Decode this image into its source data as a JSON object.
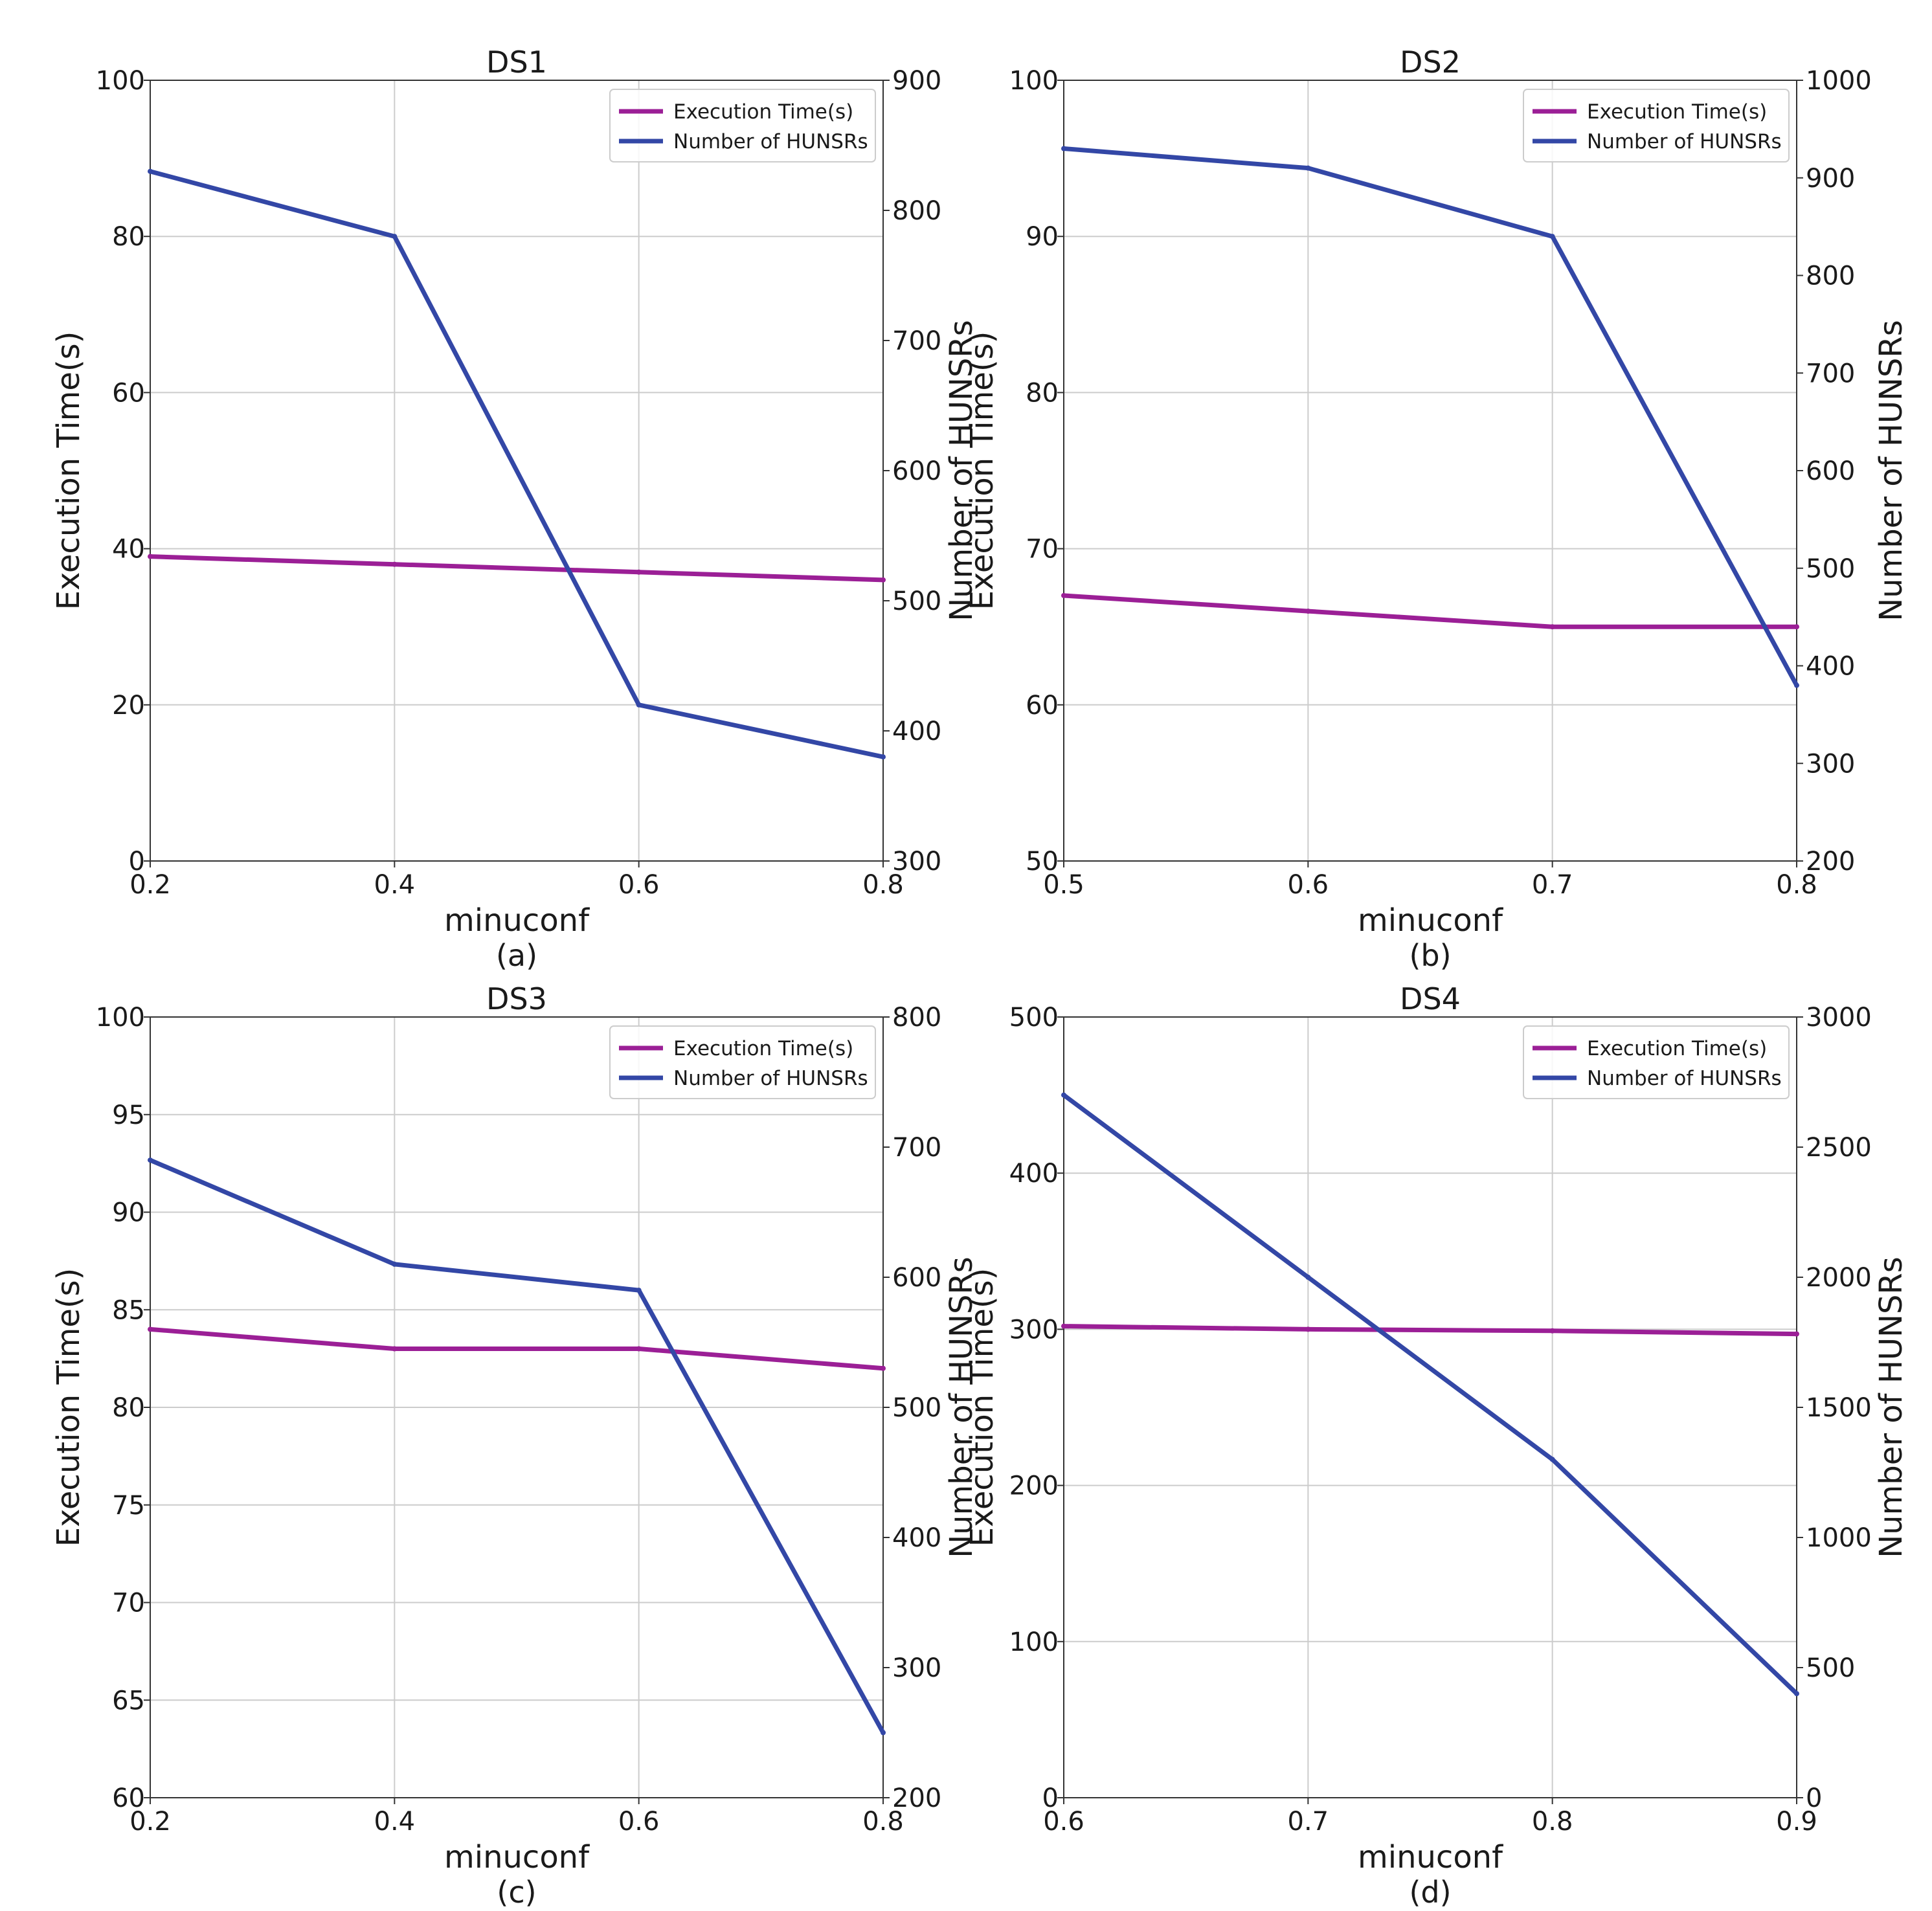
{
  "colors": {
    "execution_time": "#9b1f96",
    "hunsrs": "#3347a6"
  },
  "chart_data": [
    {
      "type": "line",
      "title": "DS1",
      "caption": "(a)",
      "xlabel": "minuconf",
      "ylabel_left": "Execution Time(s)",
      "ylabel_right": "Number of HUNSRs",
      "x": [
        0.2,
        0.4,
        0.6,
        0.8
      ],
      "xlim": [
        0.2,
        0.8
      ],
      "xticks": [
        "0.2",
        "0.4",
        "0.6",
        "0.8"
      ],
      "ylim_left": [
        0,
        100
      ],
      "yticks_left": [
        "0",
        "20",
        "40",
        "60",
        "80",
        "100"
      ],
      "ylim_right": [
        300,
        900
      ],
      "yticks_right": [
        "300",
        "400",
        "500",
        "600",
        "700",
        "800",
        "900"
      ],
      "grid": true,
      "legend": {
        "position": "top-right",
        "entries": [
          "Execution Time(s)",
          "Number of HUNSRs"
        ]
      },
      "series": [
        {
          "name": "Execution Time(s)",
          "axis": "left",
          "values": [
            39,
            38,
            37,
            36
          ]
        },
        {
          "name": "Number of HUNSRs",
          "axis": "right",
          "values": [
            830,
            780,
            420,
            380
          ]
        }
      ]
    },
    {
      "type": "line",
      "title": "DS2",
      "caption": "(b)",
      "xlabel": "minuconf",
      "ylabel_left": "Execution Time(s)",
      "ylabel_right": "Number of HUNSRs",
      "x": [
        0.5,
        0.6,
        0.7,
        0.8
      ],
      "xlim": [
        0.5,
        0.8
      ],
      "xticks": [
        "0.5",
        "0.6",
        "0.7",
        "0.8"
      ],
      "ylim_left": [
        50,
        100
      ],
      "yticks_left": [
        "50",
        "60",
        "70",
        "80",
        "90",
        "100"
      ],
      "ylim_right": [
        200,
        1000
      ],
      "yticks_right": [
        "200",
        "300",
        "400",
        "500",
        "600",
        "700",
        "800",
        "900",
        "1000"
      ],
      "grid": true,
      "legend": {
        "position": "top-right",
        "entries": [
          "Execution Time(s)",
          "Number of HUNSRs"
        ]
      },
      "series": [
        {
          "name": "Execution Time(s)",
          "axis": "left",
          "values": [
            67,
            66,
            65,
            65
          ]
        },
        {
          "name": "Number of HUNSRs",
          "axis": "right",
          "values": [
            930,
            910,
            840,
            380
          ]
        }
      ]
    },
    {
      "type": "line",
      "title": "DS3",
      "caption": "(c)",
      "xlabel": "minuconf",
      "ylabel_left": "Execution Time(s)",
      "ylabel_right": "Number of HUNSRs",
      "x": [
        0.2,
        0.4,
        0.6,
        0.8
      ],
      "xlim": [
        0.2,
        0.8
      ],
      "xticks": [
        "0.2",
        "0.4",
        "0.6",
        "0.8"
      ],
      "ylim_left": [
        60,
        100
      ],
      "yticks_left": [
        "60",
        "65",
        "70",
        "75",
        "80",
        "85",
        "90",
        "95",
        "100"
      ],
      "ylim_right": [
        200,
        800
      ],
      "yticks_right": [
        "200",
        "300",
        "400",
        "500",
        "600",
        "700",
        "800"
      ],
      "grid": true,
      "legend": {
        "position": "top-right",
        "entries": [
          "Execution Time(s)",
          "Number of HUNSRs"
        ]
      },
      "series": [
        {
          "name": "Execution Time(s)",
          "axis": "left",
          "values": [
            84,
            83,
            83,
            82
          ]
        },
        {
          "name": "Number of HUNSRs",
          "axis": "right",
          "values": [
            690,
            610,
            590,
            250
          ]
        }
      ]
    },
    {
      "type": "line",
      "title": "DS4",
      "caption": "(d)",
      "xlabel": "minuconf",
      "ylabel_left": "Execution Time(s)",
      "ylabel_right": "Number of HUNSRs",
      "x": [
        0.6,
        0.7,
        0.8,
        0.9
      ],
      "xlim": [
        0.6,
        0.9
      ],
      "xticks": [
        "0.6",
        "0.7",
        "0.8",
        "0.9"
      ],
      "ylim_left": [
        0,
        500
      ],
      "yticks_left": [
        "0",
        "100",
        "200",
        "300",
        "400",
        "500"
      ],
      "ylim_right": [
        0,
        3000
      ],
      "yticks_right": [
        "0",
        "500",
        "1000",
        "1500",
        "2000",
        "2500",
        "3000"
      ],
      "grid": true,
      "legend": {
        "position": "top-right",
        "entries": [
          "Execution Time(s)",
          "Number of HUNSRs"
        ]
      },
      "series": [
        {
          "name": "Execution Time(s)",
          "axis": "left",
          "values": [
            302,
            300,
            299,
            297
          ]
        },
        {
          "name": "Number of HUNSRs",
          "axis": "right",
          "values": [
            2700,
            2000,
            1300,
            400
          ]
        }
      ]
    }
  ]
}
